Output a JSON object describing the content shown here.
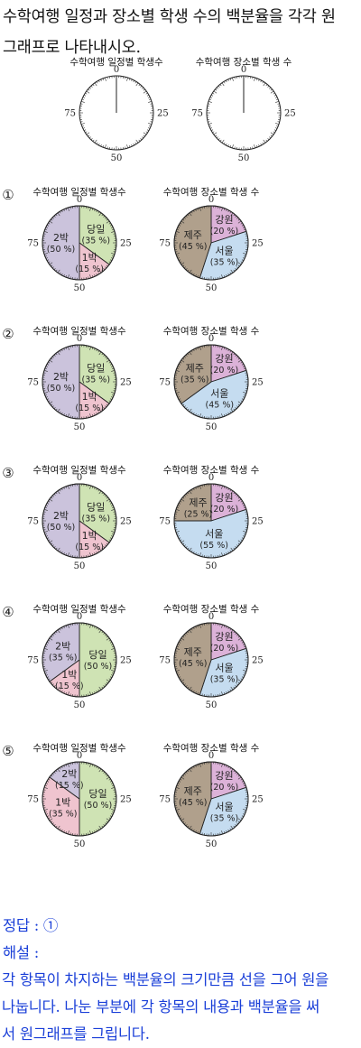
{
  "question": {
    "line1": "수학여행 일정과 장소별 학생 수의 백분율을 각각 원",
    "line2": "그래프로 나타내시오."
  },
  "blank_charts": [
    {
      "title": "수학여행 일정별 학생수"
    },
    {
      "title": "수학여행 장소별 학생 수"
    }
  ],
  "tick_labels": {
    "top": "0",
    "right": "25",
    "bottom": "50",
    "left": "75"
  },
  "chart_data": [
    {
      "type": "pie",
      "option": "①",
      "title": "수학여행 일정별 학생수",
      "slices": [
        {
          "label": "당일",
          "pct_text": "(35 %)",
          "value": 35,
          "color": "#cfe3b4"
        },
        {
          "label": "1박",
          "pct_text": "(15 %)",
          "value": 15,
          "color": "#efc4cf"
        },
        {
          "label": "2박",
          "pct_text": "(50 %)",
          "value": 50,
          "color": "#cbc3dc"
        }
      ]
    },
    {
      "type": "pie",
      "option": "①",
      "title": "수학여행 장소별 학생 수",
      "slices": [
        {
          "label": "강원",
          "pct_text": "(20 %)",
          "value": 20,
          "color": "#dcb2d8"
        },
        {
          "label": "서울",
          "pct_text": "(35 %)",
          "value": 35,
          "color": "#c5dcf0"
        },
        {
          "label": "제주",
          "pct_text": "(45 %)",
          "value": 45,
          "color": "#b0a08c"
        }
      ]
    },
    {
      "type": "pie",
      "option": "②",
      "title": "수학여행 일정별 학생수",
      "slices": [
        {
          "label": "당일",
          "pct_text": "(35 %)",
          "value": 35,
          "color": "#cfe3b4"
        },
        {
          "label": "1박",
          "pct_text": "(15 %)",
          "value": 15,
          "color": "#efc4cf"
        },
        {
          "label": "2박",
          "pct_text": "(50 %)",
          "value": 50,
          "color": "#cbc3dc"
        }
      ]
    },
    {
      "type": "pie",
      "option": "②",
      "title": "수학여행 장소별 학생 수",
      "slices": [
        {
          "label": "강원",
          "pct_text": "(20 %)",
          "value": 20,
          "color": "#dcb2d8"
        },
        {
          "label": "서울",
          "pct_text": "(45 %)",
          "value": 45,
          "color": "#c5dcf0"
        },
        {
          "label": "제주",
          "pct_text": "(35 %)",
          "value": 35,
          "color": "#b0a08c"
        }
      ]
    },
    {
      "type": "pie",
      "option": "③",
      "title": "수학여행 일정별 학생수",
      "slices": [
        {
          "label": "당일",
          "pct_text": "(35 %)",
          "value": 35,
          "color": "#cfe3b4"
        },
        {
          "label": "1박",
          "pct_text": "(15 %)",
          "value": 15,
          "color": "#efc4cf"
        },
        {
          "label": "2박",
          "pct_text": "(50 %)",
          "value": 50,
          "color": "#cbc3dc"
        }
      ]
    },
    {
      "type": "pie",
      "option": "③",
      "title": "수학여행 장소별 학생 수",
      "slices": [
        {
          "label": "강원",
          "pct_text": "(20 %)",
          "value": 20,
          "color": "#dcb2d8"
        },
        {
          "label": "서울",
          "pct_text": "(55 %)",
          "value": 55,
          "color": "#c5dcf0"
        },
        {
          "label": "제주",
          "pct_text": "(25 %)",
          "value": 25,
          "color": "#b0a08c"
        }
      ]
    },
    {
      "type": "pie",
      "option": "④",
      "title": "수학여행 일정별 학생수",
      "slices": [
        {
          "label": "당일",
          "pct_text": "(50 %)",
          "value": 50,
          "color": "#cfe3b4"
        },
        {
          "label": "1박",
          "pct_text": "(15 %)",
          "value": 15,
          "color": "#efc4cf"
        },
        {
          "label": "2박",
          "pct_text": "(35 %)",
          "value": 35,
          "color": "#cbc3dc"
        }
      ]
    },
    {
      "type": "pie",
      "option": "④",
      "title": "수학여행 장소별 학생 수",
      "slices": [
        {
          "label": "강원",
          "pct_text": "(20 %)",
          "value": 20,
          "color": "#dcb2d8"
        },
        {
          "label": "서울",
          "pct_text": "(35 %)",
          "value": 35,
          "color": "#c5dcf0"
        },
        {
          "label": "제주",
          "pct_text": "(45 %)",
          "value": 45,
          "color": "#b0a08c"
        }
      ]
    },
    {
      "type": "pie",
      "option": "⑤",
      "title": "수학여행 일정별 학생수",
      "slices": [
        {
          "label": "당일",
          "pct_text": "(50 %)",
          "value": 50,
          "color": "#cfe3b4"
        },
        {
          "label": "1박",
          "pct_text": "(35 %)",
          "value": 35,
          "color": "#efc4cf"
        },
        {
          "label": "2박",
          "pct_text": "(15 %)",
          "value": 15,
          "color": "#cbc3dc"
        }
      ]
    },
    {
      "type": "pie",
      "option": "⑤",
      "title": "수학여행 장소별 학생 수",
      "slices": [
        {
          "label": "강원",
          "pct_text": "(20 %)",
          "value": 20,
          "color": "#dcb2d8"
        },
        {
          "label": "서울",
          "pct_text": "(35 %)",
          "value": 35,
          "color": "#c5dcf0"
        },
        {
          "label": "제주",
          "pct_text": "(45 %)",
          "value": 45,
          "color": "#b0a08c"
        }
      ]
    }
  ],
  "answer": {
    "label": "정답 : ①",
    "explanation_label": "해설 :",
    "explanation_line1": "각 항목이 차지하는 백분율의 크기만큼 선을 그어 원을",
    "explanation_line2": "나눕니다. 나눈 부분에 각 항목의 내용과 백분율을 써",
    "explanation_line3": "서 원그래프를 그립니다."
  }
}
